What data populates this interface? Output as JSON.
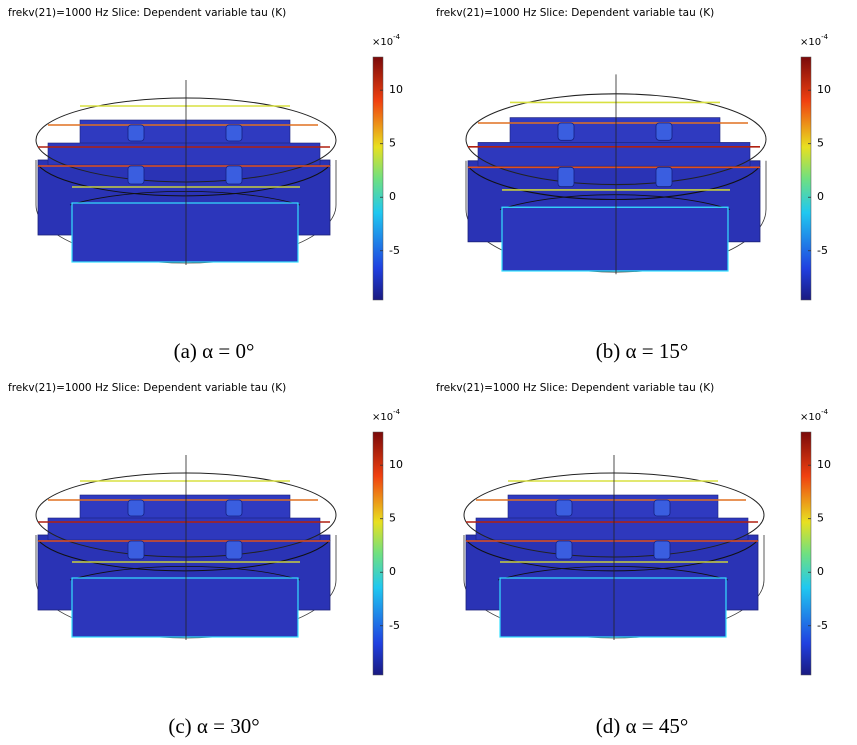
{
  "panels": [
    {
      "title": "frekv(21)=1000 Hz  Slice: Dependent variable tau (K)",
      "colorbar": {
        "multiplier": "×10",
        "exponent": "-4",
        "clim": [
          -9.6,
          13.1
        ],
        "ticks": [
          10,
          5,
          0,
          -5
        ]
      },
      "caption": "(a) α = 0°"
    },
    {
      "title": "frekv(21)=1000 Hz  Slice: Dependent variable tau (K)",
      "colorbar": {
        "multiplier": "×10",
        "exponent": "-4",
        "clim": [
          -9.6,
          13.1
        ],
        "ticks": [
          10,
          5,
          0,
          -5
        ]
      },
      "caption": "(b) α = 15°"
    },
    {
      "title": "frekv(21)=1000 Hz  Slice: Dependent variable tau (K)",
      "colorbar": {
        "multiplier": "×10",
        "exponent": "-4",
        "clim": [
          -9.6,
          13.1
        ],
        "ticks": [
          10,
          5,
          0,
          -5
        ]
      },
      "caption": "(c) α = 30°"
    },
    {
      "title": "frekv(21)=1000 Hz  Slice: Dependent variable tau (K)",
      "colorbar": {
        "multiplier": "×10",
        "exponent": "-4",
        "clim": [
          -9.6,
          13.1
        ],
        "ticks": [
          10,
          5,
          0,
          -5
        ]
      },
      "caption": "(d) α = 45°"
    }
  ]
}
